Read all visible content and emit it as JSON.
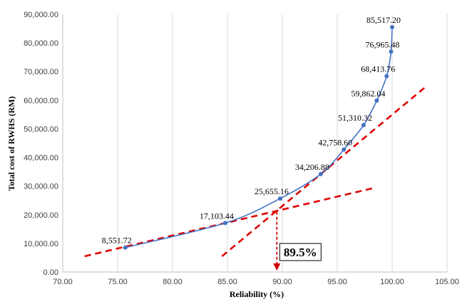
{
  "chart_data": {
    "type": "scatter",
    "title": "",
    "xlabel": "Reliability (%)",
    "ylabel": "Total cost of RWHS (RM)",
    "xlim": [
      70,
      105
    ],
    "ylim": [
      0,
      90000
    ],
    "x_ticks": [
      "70.00",
      "75.00",
      "80.00",
      "85.00",
      "90.00",
      "95.00",
      "100.00",
      "105.00"
    ],
    "y_ticks": [
      "0.00",
      "10,000.00",
      "20,000.00",
      "30,000.00",
      "40,000.00",
      "50,000.00",
      "60,000.00",
      "70,000.00",
      "80,000.00",
      "90,000.00"
    ],
    "grid": {
      "vertical": true,
      "horizontal": false
    },
    "legend": "none",
    "colors": {
      "series": "#4472C4",
      "tangent": "#E00000",
      "callout": "#D00000"
    },
    "series": [
      {
        "x": [
          75.7,
          84.8,
          89.8,
          93.5,
          95.6,
          97.4,
          98.6,
          99.5,
          99.9,
          100.0
        ],
        "y": [
          8551.72,
          17103.44,
          25655.16,
          34206.88,
          42758.6,
          51310.32,
          59862.04,
          68413.76,
          76965.48,
          85517.2
        ],
        "labels": [
          "8,551.72",
          "17,103.44",
          "25,655.16",
          "34,206.88",
          "42,758.60",
          "51,310.32",
          "59,862.04",
          "68,413.76",
          "76,965.48",
          "85,517.20"
        ]
      }
    ],
    "tangent_lines": [
      {
        "x": [
          72.0,
          98.5
        ],
        "y": [
          5500,
          29500
        ]
      },
      {
        "x": [
          84.5,
          103.0
        ],
        "y": [
          5500,
          64500
        ]
      }
    ],
    "annotation": {
      "text": "89.5%",
      "x": 89.5,
      "y_from": 21000,
      "y_to": 0
    }
  }
}
